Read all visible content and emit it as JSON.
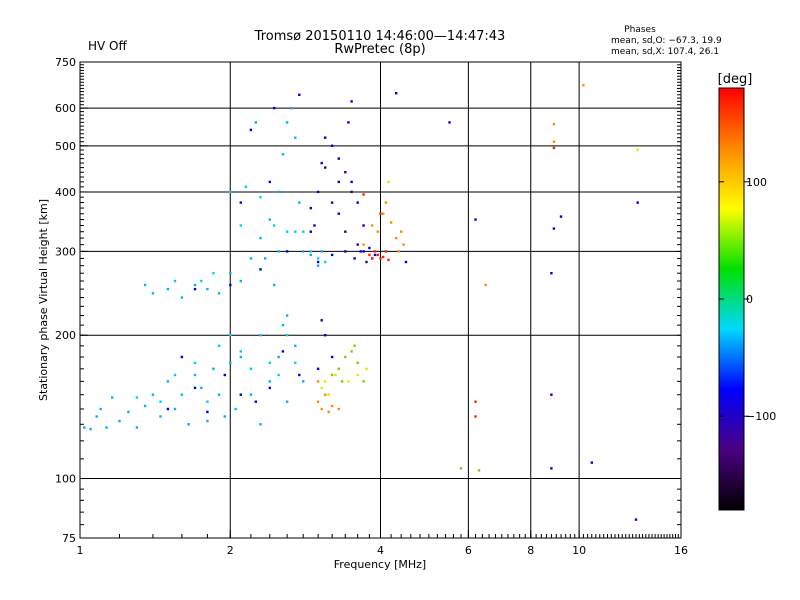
{
  "header": {
    "status_label": "HV Off",
    "status_color": "#cc0000",
    "title_line1": "Tromsø 20150110 14:46:00—14:47:43",
    "title_line2": "RwPretec (8p)",
    "phase_heading": "Phases",
    "phase_line1": "mean, sd,O: −67.3, 19.9",
    "phase_line2": "mean, sd,X: 107.4, 26.1"
  },
  "chart_data": {
    "type": "scatter",
    "xlabel": "Frequency [MHz]",
    "ylabel": "Stationary phase Virtual Height [km]",
    "x_scale": "log",
    "y_scale": "log",
    "xlim": [
      1,
      16
    ],
    "ylim": [
      75,
      750
    ],
    "grid": true,
    "x_ticks": [
      1,
      2,
      4,
      6,
      8,
      10,
      16
    ],
    "x_tick_labels": [
      "1",
      "2",
      "4",
      "6",
      "8",
      "10",
      "16"
    ],
    "x_grid": [
      2,
      4,
      6,
      8,
      10
    ],
    "y_ticks": [
      75,
      100,
      200,
      300,
      400,
      500,
      600,
      750
    ],
    "y_tick_labels": [
      "75",
      "100",
      "200",
      "300",
      "400",
      "500",
      "600",
      "750"
    ],
    "y_grid": [
      100,
      200,
      300,
      400,
      500,
      600
    ],
    "colorbar": {
      "label": "[deg]",
      "range": [
        -180,
        180
      ],
      "ticks": [
        100,
        0,
        -100
      ],
      "tick_labels": [
        "100",
        "0",
        "−100"
      ],
      "stops": [
        "#000000",
        "#4b0082",
        "#0000ff",
        "#00d8ff",
        "#00e000",
        "#ffff00",
        "#ff8800",
        "#ff0000"
      ]
    },
    "series": [
      {
        "phase_deg": -88,
        "color": "#00b4f0",
        "points": [
          [
            1.02,
            128
          ],
          [
            1.05,
            127
          ],
          [
            1.08,
            135
          ],
          [
            1.1,
            140
          ],
          [
            1.13,
            128
          ],
          [
            1.16,
            148
          ],
          [
            1.2,
            132
          ],
          [
            1.25,
            138
          ],
          [
            1.3,
            128
          ],
          [
            1.35,
            142
          ],
          [
            1.4,
            150
          ],
          [
            1.5,
            160
          ],
          [
            1.45,
            135
          ],
          [
            1.55,
            140
          ],
          [
            1.6,
            150
          ],
          [
            1.65,
            130
          ],
          [
            1.7,
            165
          ],
          [
            1.75,
            155
          ],
          [
            1.8,
            132
          ],
          [
            1.85,
            170
          ],
          [
            1.9,
            150
          ],
          [
            1.95,
            135
          ],
          [
            2.0,
            175
          ],
          [
            2.05,
            140
          ],
          [
            2.1,
            180
          ],
          [
            2.2,
            150
          ],
          [
            2.3,
            130
          ],
          [
            2.4,
            160
          ],
          [
            2.5,
            180
          ],
          [
            2.6,
            145
          ],
          [
            2.7,
            190
          ],
          [
            2.8,
            160
          ],
          [
            2.55,
            210
          ],
          [
            2.6,
            220
          ],
          [
            1.35,
            255
          ],
          [
            1.4,
            245
          ],
          [
            1.5,
            250
          ],
          [
            1.6,
            240
          ],
          [
            1.7,
            255
          ],
          [
            1.8,
            250
          ],
          [
            1.9,
            245
          ],
          [
            2.0,
            270
          ],
          [
            2.1,
            260
          ],
          [
            2.2,
            290
          ],
          [
            2.3,
            320
          ],
          [
            2.4,
            350
          ],
          [
            2.5,
            400
          ],
          [
            2.55,
            480
          ],
          [
            2.6,
            560
          ],
          [
            2.65,
            600
          ],
          [
            2.7,
            520
          ],
          [
            2.75,
            380
          ],
          [
            2.8,
            300
          ],
          [
            2.9,
            295
          ],
          [
            3.0,
            280
          ],
          [
            2.35,
            290
          ],
          [
            2.25,
            560
          ],
          [
            2.5,
            300
          ],
          [
            3.05,
            300
          ],
          [
            2.45,
            255
          ]
        ]
      },
      {
        "phase_deg": -70,
        "color": "#00d0f0",
        "points": [
          [
            1.3,
            148
          ],
          [
            1.45,
            145
          ],
          [
            1.55,
            165
          ],
          [
            1.6,
            180
          ],
          [
            1.7,
            175
          ],
          [
            1.8,
            145
          ],
          [
            1.9,
            190
          ],
          [
            2.0,
            200
          ],
          [
            2.1,
            185
          ],
          [
            2.2,
            170
          ],
          [
            2.3,
            200
          ],
          [
            2.4,
            175
          ],
          [
            2.5,
            165
          ],
          [
            2.6,
            200
          ],
          [
            2.7,
            175
          ],
          [
            2.15,
            410
          ],
          [
            2.3,
            390
          ],
          [
            2.45,
            340
          ],
          [
            2.6,
            330
          ],
          [
            2.7,
            330
          ],
          [
            1.55,
            260
          ],
          [
            1.75,
            260
          ],
          [
            1.85,
            270
          ],
          [
            2.0,
            400
          ],
          [
            2.1,
            340
          ],
          [
            2.9,
            300
          ],
          [
            3.0,
            290
          ],
          [
            2.8,
            330
          ],
          [
            3.1,
            285
          ]
        ]
      },
      {
        "phase_deg": -125,
        "color": "#0000e6",
        "points": [
          [
            1.5,
            140
          ],
          [
            1.6,
            180
          ],
          [
            1.7,
            155
          ],
          [
            1.8,
            138
          ],
          [
            1.95,
            165
          ],
          [
            2.1,
            150
          ],
          [
            2.25,
            145
          ],
          [
            2.4,
            155
          ],
          [
            2.55,
            185
          ],
          [
            2.75,
            165
          ],
          [
            3.1,
            200
          ],
          [
            3.2,
            180
          ],
          [
            3.0,
            170
          ],
          [
            1.7,
            250
          ],
          [
            2.0,
            255
          ],
          [
            2.3,
            275
          ],
          [
            2.6,
            300
          ],
          [
            2.9,
            330
          ],
          [
            3.0,
            400
          ],
          [
            3.05,
            460
          ],
          [
            3.1,
            520
          ],
          [
            3.2,
            500
          ],
          [
            3.3,
            470
          ],
          [
            3.4,
            440
          ],
          [
            3.5,
            420
          ],
          [
            3.6,
            380
          ],
          [
            3.7,
            340
          ],
          [
            3.8,
            305
          ],
          [
            3.85,
            290
          ],
          [
            3.9,
            295
          ],
          [
            3.0,
            285
          ],
          [
            3.2,
            295
          ],
          [
            3.4,
            300
          ],
          [
            3.55,
            290
          ],
          [
            3.65,
            300
          ],
          [
            2.2,
            540
          ],
          [
            2.45,
            600
          ],
          [
            2.75,
            640
          ],
          [
            3.5,
            620
          ],
          [
            4.3,
            645
          ],
          [
            5.5,
            560
          ],
          [
            6.2,
            350
          ],
          [
            8.8,
            270
          ],
          [
            8.9,
            335
          ],
          [
            9.2,
            355
          ],
          [
            13.1,
            380
          ],
          [
            8.8,
            105
          ],
          [
            10.6,
            108
          ],
          [
            8.8,
            150
          ],
          [
            13.0,
            82
          ],
          [
            4.5,
            285
          ],
          [
            2.1,
            380
          ],
          [
            2.4,
            420
          ],
          [
            2.9,
            370
          ],
          [
            3.3,
            360
          ],
          [
            3.45,
            560
          ],
          [
            3.7,
            300
          ]
        ]
      },
      {
        "phase_deg": -160,
        "color": "#2a0090",
        "points": [
          [
            3.3,
            420
          ],
          [
            3.2,
            380
          ],
          [
            3.5,
            400
          ],
          [
            3.6,
            310
          ],
          [
            3.1,
            450
          ],
          [
            2.95,
            340
          ],
          [
            3.4,
            330
          ],
          [
            3.75,
            285
          ],
          [
            3.05,
            215
          ]
        ]
      },
      {
        "phase_deg": 40,
        "color": "#7ad000",
        "points": [
          [
            3.2,
            165
          ],
          [
            3.3,
            170
          ],
          [
            3.4,
            180
          ],
          [
            3.5,
            185
          ],
          [
            3.6,
            175
          ],
          [
            3.7,
            160
          ],
          [
            3.55,
            190
          ],
          [
            3.35,
            160
          ],
          [
            5.8,
            105
          ],
          [
            6.3,
            104
          ]
        ]
      },
      {
        "phase_deg": 100,
        "color": "#f0e000",
        "points": [
          [
            3.05,
            155
          ],
          [
            3.15,
            150
          ],
          [
            3.25,
            165
          ],
          [
            3.45,
            160
          ],
          [
            3.6,
            165
          ],
          [
            3.75,
            170
          ],
          [
            3.1,
            160
          ],
          [
            4.15,
            420
          ],
          [
            13.1,
            490
          ]
        ]
      },
      {
        "phase_deg": 140,
        "color": "#ff8c00",
        "points": [
          [
            3.0,
            145
          ],
          [
            3.05,
            140
          ],
          [
            3.1,
            150
          ],
          [
            3.15,
            138
          ],
          [
            3.2,
            142
          ],
          [
            3.3,
            140
          ],
          [
            3.1,
            150
          ],
          [
            3.0,
            160
          ],
          [
            3.7,
            310
          ],
          [
            3.85,
            340
          ],
          [
            3.95,
            330
          ],
          [
            4.1,
            380
          ],
          [
            4.2,
            345
          ],
          [
            4.3,
            320
          ],
          [
            4.35,
            300
          ],
          [
            4.4,
            330
          ],
          [
            4.45,
            310
          ],
          [
            6.5,
            255
          ],
          [
            8.9,
            555
          ],
          [
            8.9,
            510
          ],
          [
            10.2,
            670
          ],
          [
            4.05,
            360
          ]
        ]
      },
      {
        "phase_deg": 170,
        "color": "#ff2000",
        "points": [
          [
            3.8,
            295
          ],
          [
            3.85,
            290
          ],
          [
            3.9,
            300
          ],
          [
            3.95,
            295
          ],
          [
            4.0,
            290
          ],
          [
            4.05,
            292
          ],
          [
            4.1,
            300
          ],
          [
            4.15,
            288
          ],
          [
            6.2,
            145
          ],
          [
            6.2,
            135
          ],
          [
            8.9,
            495
          ],
          [
            3.7,
            395
          ],
          [
            4.0,
            360
          ]
        ]
      }
    ]
  }
}
